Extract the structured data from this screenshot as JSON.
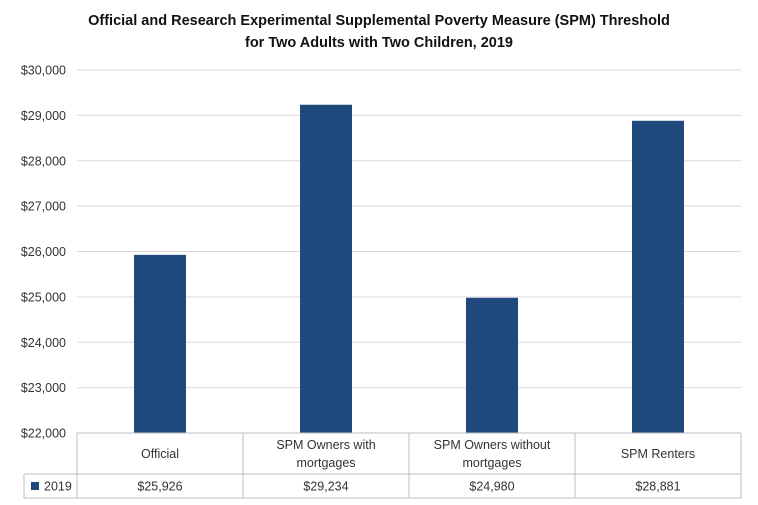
{
  "chart_data": {
    "type": "bar",
    "title": [
      "Official and Research Experimental Supplemental Poverty Measure (SPM) Threshold",
      "for Two Adults with Two Children, 2019"
    ],
    "categories": [
      [
        "Official"
      ],
      [
        "SPM Owners with",
        "mortgages"
      ],
      [
        "SPM Owners without",
        "mortgages"
      ],
      [
        "SPM Renters"
      ]
    ],
    "series": [
      {
        "name": "2019",
        "values": [
          25926,
          29234,
          24980,
          28881
        ],
        "labels": [
          "$25,926",
          "$29,234",
          "$24,980",
          "$28,881"
        ],
        "color": "#1F497D"
      }
    ],
    "ylim": [
      22000,
      30000
    ],
    "yticks": [
      {
        "value": 22000,
        "label": "$22,000"
      },
      {
        "value": 23000,
        "label": "$23,000"
      },
      {
        "value": 24000,
        "label": "$24,000"
      },
      {
        "value": 25000,
        "label": "$25,000"
      },
      {
        "value": 26000,
        "label": "$26,000"
      },
      {
        "value": 27000,
        "label": "$27,000"
      },
      {
        "value": 28000,
        "label": "$28,000"
      },
      {
        "value": 29000,
        "label": "$29,000"
      },
      {
        "value": 30000,
        "label": "$30,000"
      }
    ],
    "grid": true,
    "legend": "data-table",
    "gridColor": "#D9D9D9",
    "axisColor": "#BFBFBF"
  }
}
